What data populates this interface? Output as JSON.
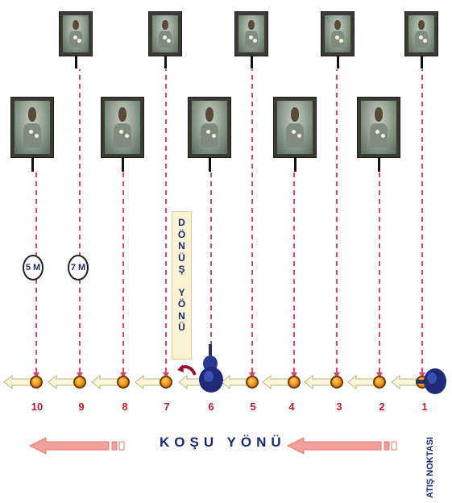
{
  "diagram": {
    "positions": [
      "10",
      "9",
      "8",
      "7",
      "6",
      "5",
      "4",
      "3",
      "2",
      "1"
    ],
    "distance_markers": [
      "5 M",
      "7 M"
    ],
    "turn_direction_label": "DÖNÜŞ YÖNÜ",
    "turn_direction_letters": [
      "D",
      "Ö",
      "N",
      "Ü",
      "Ş",
      "",
      "Y",
      "Ö",
      "N",
      "Ü"
    ],
    "running_direction_label": "KOŞU YÖNÜ",
    "firing_point_label": "ATIŞ NOKTASI",
    "colors": {
      "dashed_line": "#e0426a",
      "arrow_fill": "#fff6dc",
      "arrow_stroke": "#b9b07a",
      "number_text": "#b81d2c",
      "label_text": "#1b2a6e",
      "big_arrow": "#f4a09a"
    }
  }
}
